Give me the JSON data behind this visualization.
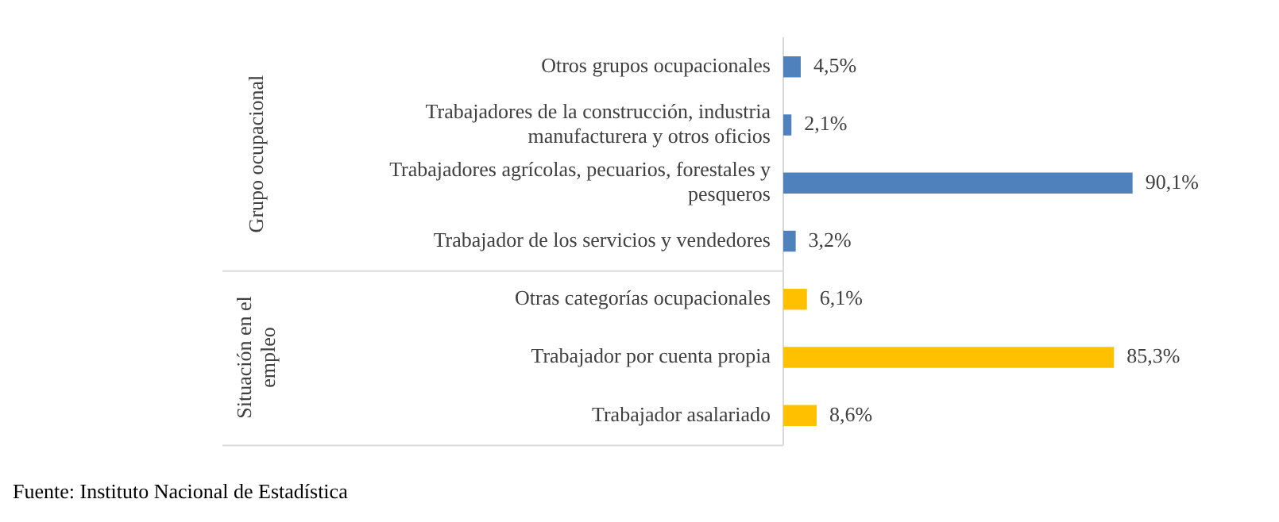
{
  "chart_data": {
    "type": "bar",
    "orientation": "horizontal",
    "stacked": true,
    "categories": [
      "Otros grupos ocupacionales",
      "Trabajadores de la construcción, industria manufacturera y otros oficios",
      "Trabajadores agrícolas, pecuarios, forestales y pesqueros",
      "Trabajador de los servicios y vendedores",
      "Otras categorías ocupacionales",
      "Trabajador por cuenta propia",
      "Trabajador asalariado"
    ],
    "series": [
      {
        "color": "#4f81bd",
        "values": [
          4.5,
          2.1,
          90.1,
          3.2,
          null,
          null,
          null
        ],
        "value_labels": [
          "4,5%",
          "2,1%",
          "90,1%",
          "3,2%",
          null,
          null,
          null
        ]
      },
      {
        "color": "#ffc000",
        "values": [
          null,
          null,
          null,
          null,
          6.1,
          85.3,
          8.6
        ],
        "value_labels": [
          null,
          null,
          null,
          null,
          "6,1%",
          "85,3%",
          "8,6%"
        ]
      }
    ],
    "data_labels": true,
    "tick_labels": "y",
    "annotations": [
      "Grupo ocupacional",
      "Situación en el empleo",
      "Fuente: Instituto Nacional de Estadística"
    ]
  }
}
